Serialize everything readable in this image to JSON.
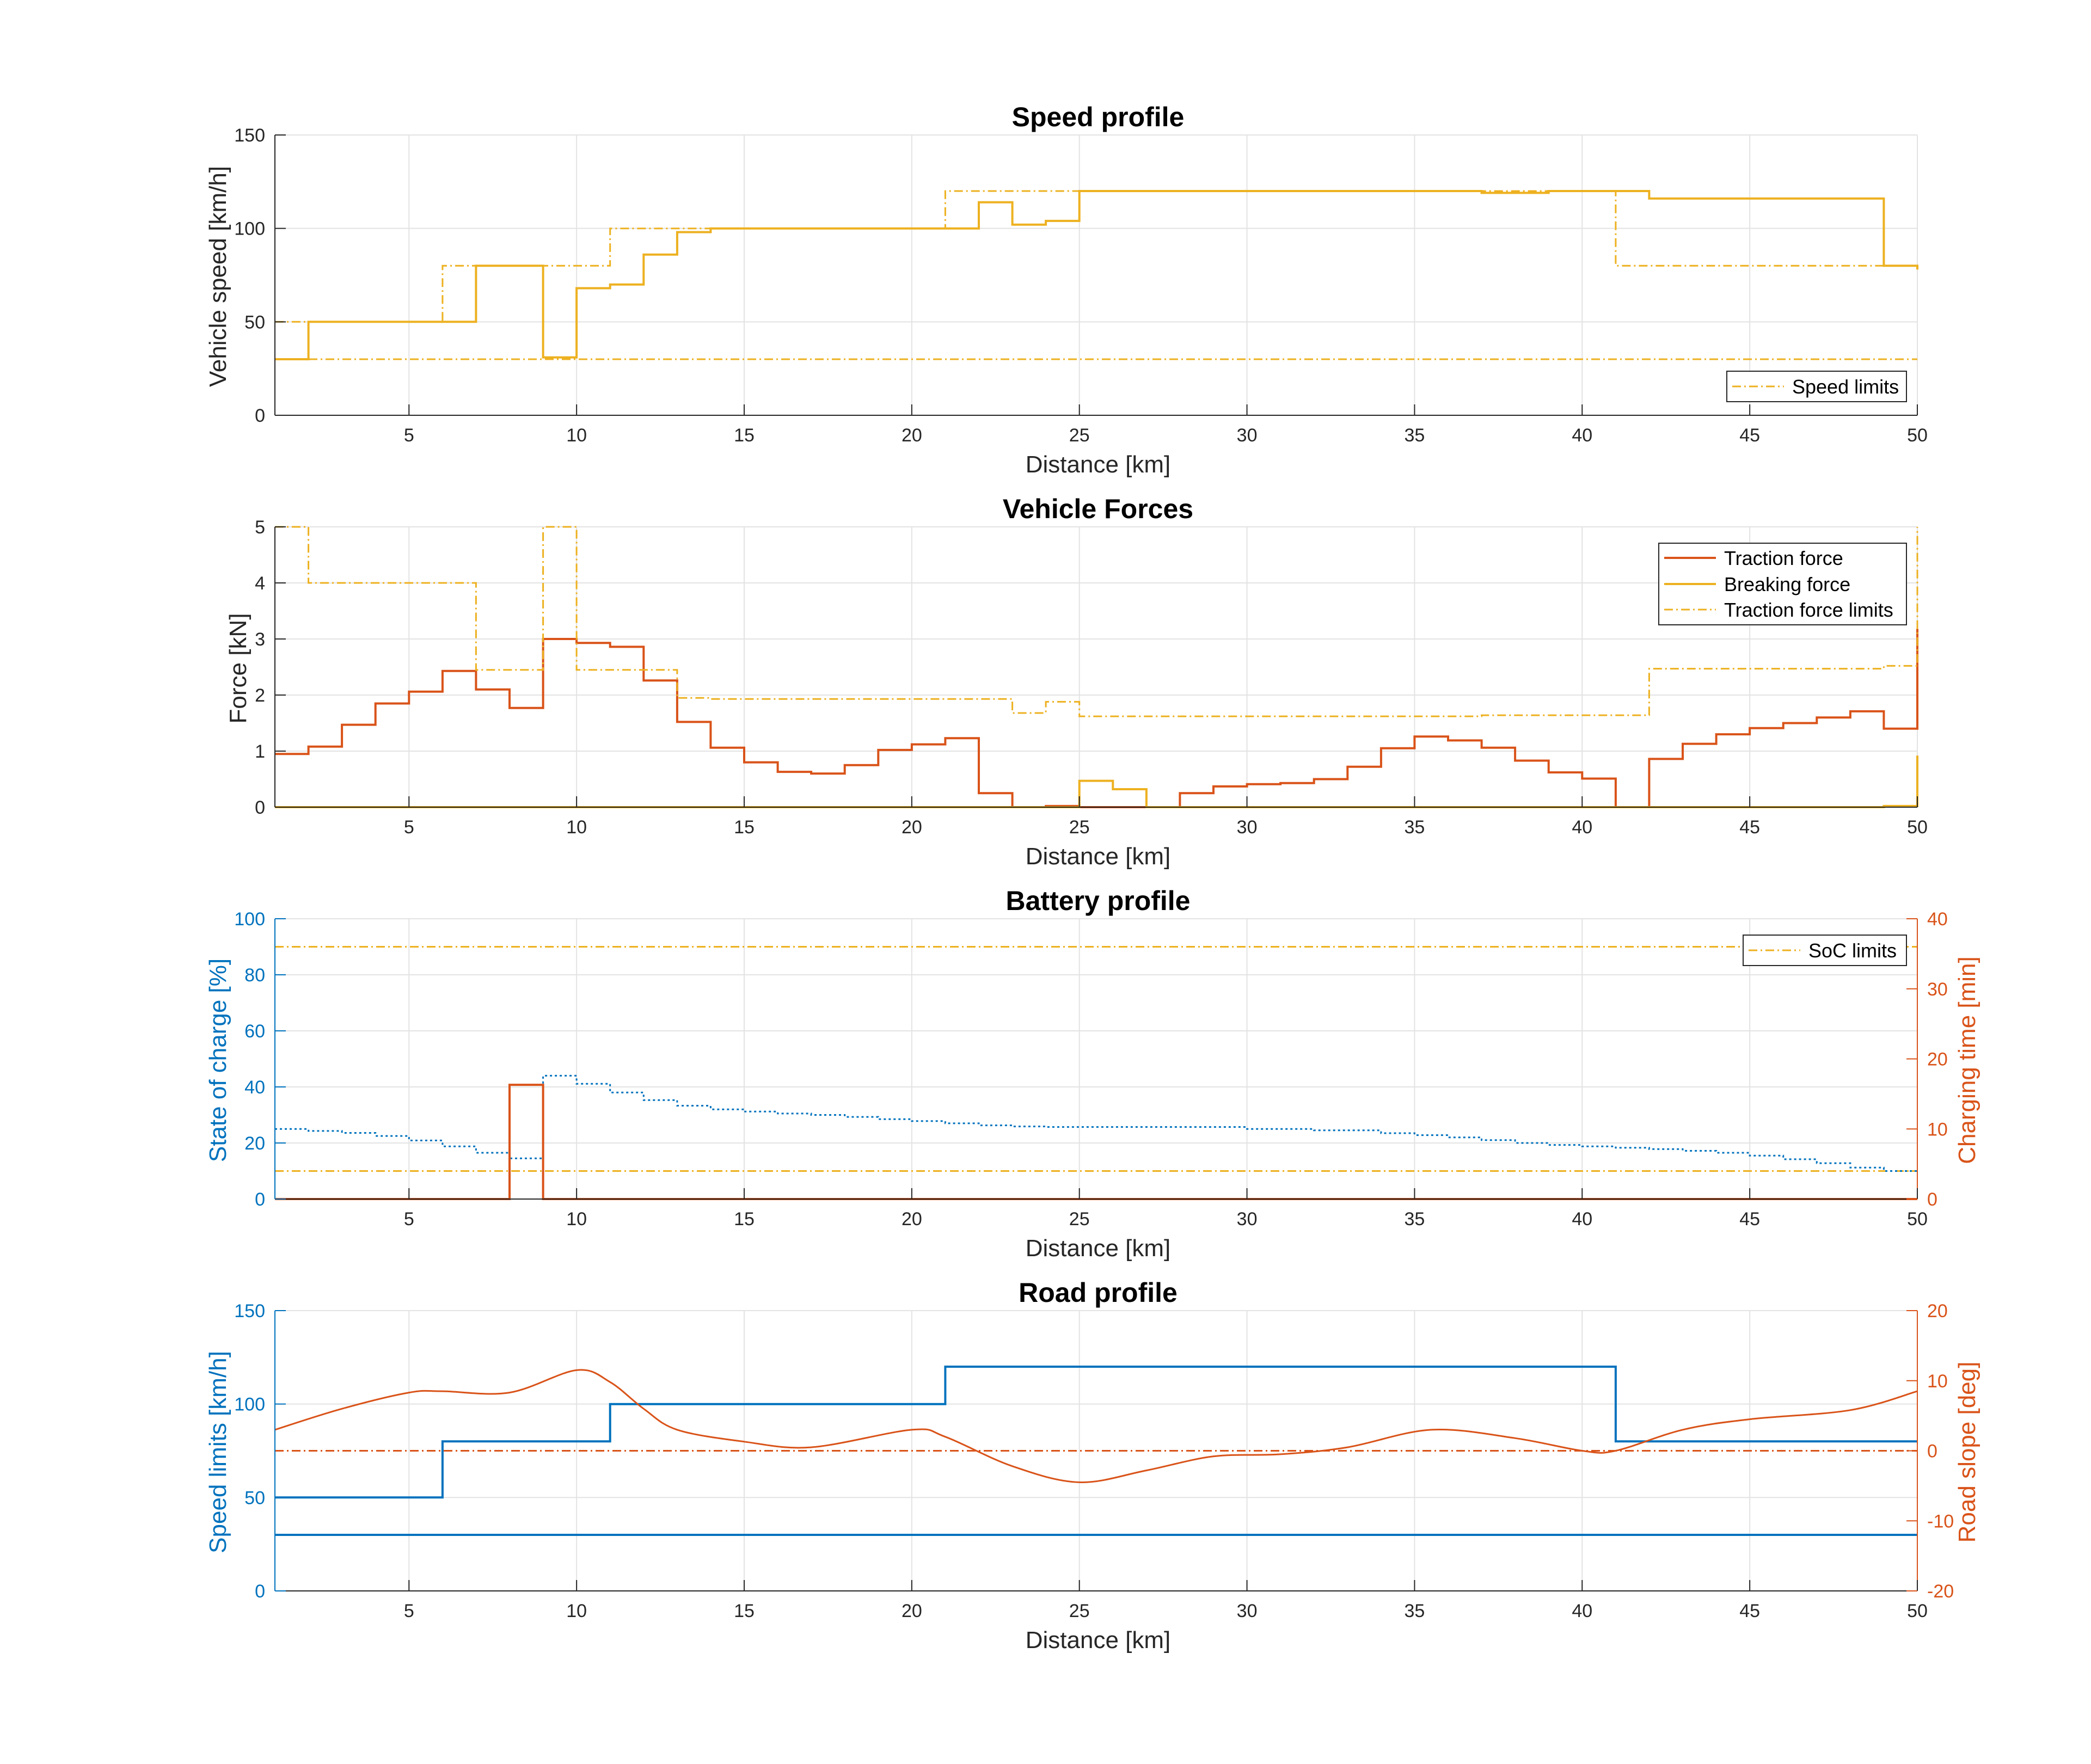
{
  "colors": {
    "speed": "#EDB120",
    "traction": "#D95319",
    "braking": "#EDB120",
    "blue": "#0072BD",
    "slope": "#D95319",
    "axis": "#262626",
    "grid": "#e3e3e3"
  },
  "chart_data": [
    {
      "type": "line",
      "title": "Speed profile",
      "xlabel": "Distance [km]",
      "ylabel": "Vehicle speed [km/h]",
      "xlim": [
        1,
        50
      ],
      "ylim": [
        0,
        150
      ],
      "xticks": [
        5,
        10,
        15,
        20,
        25,
        30,
        35,
        40,
        45,
        50
      ],
      "yticks": [
        0,
        50,
        100,
        150
      ],
      "grid": true,
      "legend": {
        "location": "bottom-right",
        "entries": [
          "Speed limits"
        ]
      },
      "series": [
        {
          "name": "Speed limits",
          "role": "upper limit",
          "style": "dashdot",
          "x": [
            1,
            6,
            11,
            21,
            41,
            50
          ],
          "y": [
            50,
            80,
            100,
            120,
            80,
            80
          ]
        },
        {
          "name": "",
          "role": "lower limit",
          "style": "dashdot",
          "x": [
            1,
            50
          ],
          "y": [
            30,
            30
          ]
        },
        {
          "name": "",
          "role": "vehicle speed",
          "style": "solid",
          "x": [
            1,
            2,
            7,
            9,
            10,
            11,
            12,
            13,
            14,
            21,
            22,
            23,
            24,
            25,
            36,
            37,
            38,
            39,
            41,
            42,
            49,
            50
          ],
          "y": [
            30,
            50,
            80,
            31,
            68,
            70,
            86,
            98,
            100,
            100,
            114,
            102,
            104,
            120,
            120,
            119,
            119,
            120,
            120,
            116,
            80,
            78
          ]
        }
      ]
    },
    {
      "type": "line",
      "title": "Vehicle Forces",
      "xlabel": "Distance [km]",
      "ylabel": "Force [kN]",
      "xlim": [
        1,
        50
      ],
      "ylim": [
        0,
        5
      ],
      "xticks": [
        5,
        10,
        15,
        20,
        25,
        30,
        35,
        40,
        45,
        50
      ],
      "yticks": [
        0,
        1,
        2,
        3,
        4,
        5
      ],
      "grid": true,
      "legend": {
        "location": "top-right",
        "entries": [
          "Traction force",
          "Breaking force",
          "Traction force limits"
        ]
      },
      "series": [
        {
          "name": "Traction force",
          "style": "solid",
          "x": [
            1,
            2,
            3,
            4,
            5,
            6,
            7,
            8,
            9,
            10,
            11,
            12,
            13,
            14,
            15,
            16,
            17,
            18,
            19,
            20,
            21,
            22,
            23,
            24,
            25,
            26,
            27,
            28,
            29,
            30,
            31,
            32,
            33,
            34,
            35,
            36,
            37,
            38,
            39,
            40,
            41,
            42,
            43,
            44,
            45,
            46,
            47,
            48,
            49,
            50
          ],
          "y": [
            0.95,
            1.08,
            1.47,
            1.85,
            2.06,
            2.43,
            2.1,
            1.77,
            3.0,
            2.93,
            2.86,
            2.26,
            1.52,
            1.06,
            0.8,
            0.63,
            0.6,
            0.75,
            1.02,
            1.12,
            1.23,
            0.25,
            0.0,
            0.02,
            0.0,
            0.0,
            0.0,
            0.25,
            0.37,
            0.41,
            0.43,
            0.5,
            0.72,
            1.05,
            1.26,
            1.19,
            1.06,
            0.83,
            0.62,
            0.51,
            0.0,
            0.86,
            1.13,
            1.3,
            1.41,
            1.5,
            1.6,
            1.71,
            1.4,
            3.18
          ]
        },
        {
          "name": "Breaking force",
          "style": "solid",
          "x": [
            1,
            25,
            26,
            27,
            49,
            50
          ],
          "y": [
            0.0,
            0.47,
            0.32,
            0.0,
            0.02,
            0.92
          ]
        },
        {
          "name": "Traction force limits",
          "style": "dashdot",
          "x": [
            1,
            2,
            7,
            9,
            10,
            13,
            14,
            22,
            23,
            24,
            25,
            37,
            41,
            42,
            49,
            50
          ],
          "y": [
            5.0,
            4.0,
            2.45,
            5.0,
            2.45,
            1.95,
            1.93,
            1.93,
            1.68,
            1.88,
            1.62,
            1.64,
            1.64,
            2.47,
            2.52,
            5.0
          ]
        }
      ]
    },
    {
      "type": "line",
      "title": "Battery profile",
      "xlabel": "Distance [km]",
      "ylabel": "State of charge [%]",
      "ylabel_right": "Charging time [min]",
      "xlim": [
        1,
        50
      ],
      "ylim": [
        0,
        100
      ],
      "ylim_right": [
        0,
        40
      ],
      "xticks": [
        5,
        10,
        15,
        20,
        25,
        30,
        35,
        40,
        45,
        50
      ],
      "yticks": [
        0,
        20,
        40,
        60,
        80,
        100
      ],
      "yticks_right": [
        0,
        10,
        20,
        30,
        40
      ],
      "grid": true,
      "legend": {
        "location": "top-right",
        "entries": [
          "SoC limits"
        ]
      },
      "series": [
        {
          "name": "SoC limits",
          "role": "upper limit",
          "style": "dashdot",
          "axis": "left",
          "x": [
            1,
            50
          ],
          "y": [
            90,
            90
          ]
        },
        {
          "name": "",
          "role": "lower limit",
          "style": "dashdot",
          "axis": "left",
          "x": [
            1,
            50
          ],
          "y": [
            10,
            10
          ]
        },
        {
          "name": "",
          "role": "state of charge",
          "style": "dotted",
          "axis": "left",
          "x": [
            1,
            2,
            3,
            4,
            5,
            6,
            7,
            8,
            9,
            10,
            11,
            12,
            13,
            14,
            15,
            16,
            17,
            18,
            19,
            20,
            21,
            22,
            23,
            24,
            25,
            30,
            32,
            34,
            35,
            36,
            37,
            38,
            39,
            40,
            41,
            42,
            43,
            44,
            45,
            46,
            47,
            48,
            49,
            50
          ],
          "y": [
            25,
            24.3,
            23.6,
            22.5,
            20.9,
            18.8,
            16.5,
            14.5,
            44,
            41.1,
            38,
            35.3,
            33.3,
            32,
            31.2,
            30.5,
            30.0,
            29.3,
            28.5,
            27.8,
            27.0,
            26.3,
            25.9,
            25.7,
            25.7,
            25.0,
            24.5,
            23.5,
            22.8,
            22.0,
            21.0,
            20.0,
            19.3,
            18.8,
            18.3,
            17.8,
            17.2,
            16.5,
            15.5,
            14.2,
            12.8,
            11.2,
            10.0,
            10.0
          ]
        },
        {
          "name": "",
          "role": "charging time",
          "style": "solid",
          "axis": "right",
          "x": [
            1,
            8,
            8,
            9,
            9,
            50
          ],
          "y": [
            0,
            0,
            16.3,
            16.3,
            0,
            0
          ]
        }
      ]
    },
    {
      "type": "line",
      "title": "Road profile",
      "xlabel": "Distance [km]",
      "ylabel": "Speed limits [km/h]",
      "ylabel_right": "Road slope [deg]",
      "xlim": [
        1,
        50
      ],
      "ylim": [
        0,
        150
      ],
      "ylim_right": [
        -20,
        20
      ],
      "xticks": [
        5,
        10,
        15,
        20,
        25,
        30,
        35,
        40,
        45,
        50
      ],
      "yticks": [
        0,
        50,
        100,
        150
      ],
      "yticks_right": [
        -20,
        -10,
        0,
        10,
        20
      ],
      "grid": true,
      "series": [
        {
          "name": "",
          "role": "upper speed limit",
          "style": "solid",
          "axis": "left",
          "x": [
            1,
            6,
            11,
            21,
            41,
            50
          ],
          "y": [
            50,
            80,
            100,
            120,
            80,
            80
          ]
        },
        {
          "name": "",
          "role": "lower speed limit",
          "style": "solid",
          "axis": "left",
          "x": [
            1,
            50
          ],
          "y": [
            30,
            30
          ]
        },
        {
          "name": "",
          "role": "zero slope",
          "style": "dashdot",
          "axis": "right",
          "x": [
            1,
            50
          ],
          "y": [
            0,
            0
          ]
        },
        {
          "name": "",
          "role": "road slope",
          "style": "solid",
          "axis": "right",
          "x": [
            1,
            3,
            5,
            6,
            8,
            10,
            11,
            12,
            13,
            15,
            17,
            20,
            21,
            23,
            25,
            27,
            29,
            31,
            33,
            35.5,
            38,
            40,
            41,
            43,
            45,
            48,
            50
          ],
          "y": [
            3,
            6,
            8.3,
            8.5,
            8.3,
            11.5,
            9.8,
            6.0,
            3.0,
            1.3,
            0.5,
            3.0,
            2.0,
            -2.2,
            -4.5,
            -2.8,
            -0.8,
            -0.5,
            0.5,
            3.0,
            1.8,
            0.0,
            0.0,
            3.0,
            4.5,
            5.8,
            8.5
          ]
        }
      ]
    }
  ]
}
